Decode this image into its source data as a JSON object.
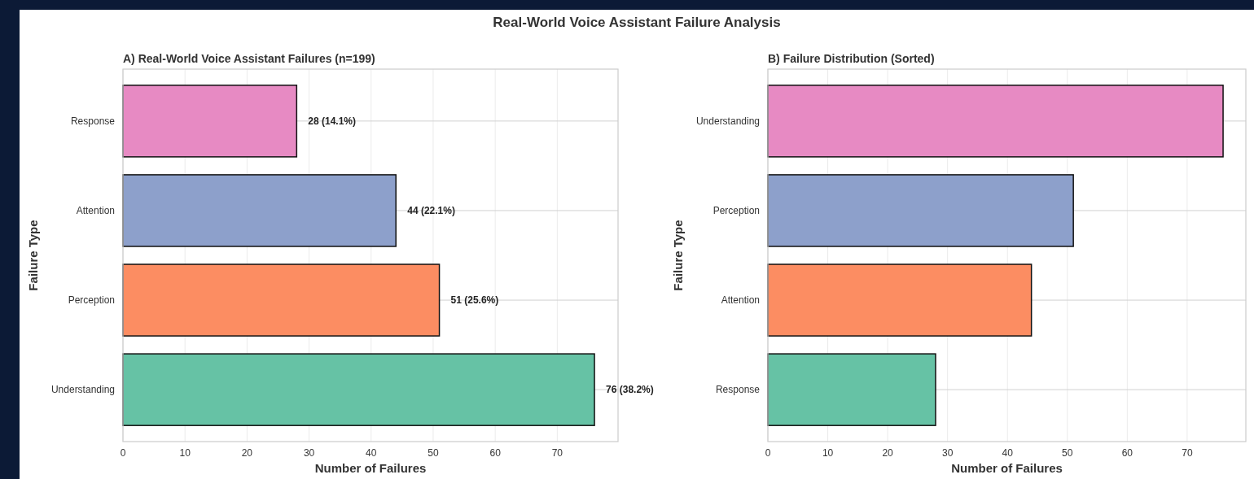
{
  "chart_data": [
    {
      "type": "bar",
      "orientation": "horizontal",
      "title": "A) Real-World Voice Assistant Failures (n=199)",
      "annotations": [
        "Real-World Voice Assistant Failure Analysis"
      ],
      "xlabel": "Number of Failures",
      "ylabel": "Failure Type",
      "categories": [
        "Response",
        "Attention",
        "Perception",
        "Understanding"
      ],
      "values": [
        28,
        44,
        51,
        76
      ],
      "colors": [
        "#e78ac3",
        "#8da0cb",
        "#fc8d62",
        "#66c2a5"
      ],
      "value_labels": [
        "28 (14.1%)",
        "44 (22.1%)",
        "51 (25.6%)",
        "76 (38.2%)"
      ],
      "xlim": [
        0,
        79.8
      ],
      "xticks": [
        0,
        10,
        20,
        30,
        40,
        50,
        60,
        70
      ],
      "grid": true
    },
    {
      "type": "bar",
      "orientation": "horizontal",
      "title": "B) Failure Distribution (Sorted)",
      "xlabel": "Number of Failures",
      "ylabel": "Failure Type",
      "categories": [
        "Understanding",
        "Perception",
        "Attention",
        "Response"
      ],
      "values": [
        76,
        51,
        44,
        28
      ],
      "colors": [
        "#e78ac3",
        "#8da0cb",
        "#fc8d62",
        "#66c2a5"
      ],
      "xlim": [
        0,
        79.8
      ],
      "xticks": [
        0,
        10,
        20,
        30,
        40,
        50,
        60,
        70
      ],
      "grid": true
    }
  ]
}
